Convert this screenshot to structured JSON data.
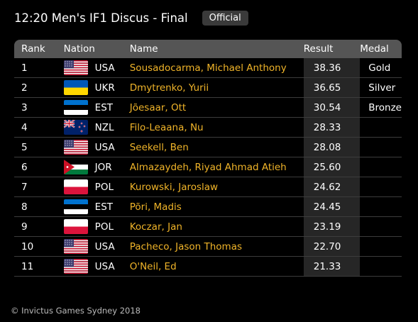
{
  "header": {
    "title": "12:20 Men's IF1 Discus - Final",
    "badge": "Official"
  },
  "table": {
    "columns": {
      "rank": "Rank",
      "nation": "Nation",
      "name": "Name",
      "result": "Result",
      "medal": "Medal"
    },
    "rows": [
      {
        "rank": "1",
        "flag": "usa",
        "code": "USA",
        "name": "Sousadocarma, Michael Anthony",
        "result": "38.36",
        "medal": "Gold"
      },
      {
        "rank": "2",
        "flag": "ukr",
        "code": "UKR",
        "name": "Dmytrenko, Yurii",
        "result": "36.65",
        "medal": "Silver"
      },
      {
        "rank": "3",
        "flag": "est",
        "code": "EST",
        "name": "Jõesaar, Ott",
        "result": "30.54",
        "medal": "Bronze"
      },
      {
        "rank": "4",
        "flag": "nzl",
        "code": "NZL",
        "name": "Filo-Leaana, Nu",
        "result": "28.33",
        "medal": ""
      },
      {
        "rank": "5",
        "flag": "usa",
        "code": "USA",
        "name": "Seekell, Ben",
        "result": "28.08",
        "medal": ""
      },
      {
        "rank": "6",
        "flag": "jor",
        "code": "JOR",
        "name": "Almazaydeh, Riyad Ahmad Atieh",
        "result": "25.60",
        "medal": ""
      },
      {
        "rank": "7",
        "flag": "pol",
        "code": "POL",
        "name": "Kurowski, Jaroslaw",
        "result": "24.62",
        "medal": ""
      },
      {
        "rank": "8",
        "flag": "est",
        "code": "EST",
        "name": "Põri, Madis",
        "result": "24.45",
        "medal": ""
      },
      {
        "rank": "9",
        "flag": "pol",
        "code": "POL",
        "name": "Koczar, Jan",
        "result": "23.19",
        "medal": ""
      },
      {
        "rank": "10",
        "flag": "usa",
        "code": "USA",
        "name": "Pacheco, Jason Thomas",
        "result": "22.70",
        "medal": ""
      },
      {
        "rank": "11",
        "flag": "usa",
        "code": "USA",
        "name": "O'Neil, Ed",
        "result": "21.33",
        "medal": ""
      }
    ]
  },
  "footer": {
    "copyright": "© Invictus Games Sydney 2018"
  },
  "colors": {
    "background": "#000000",
    "name_text": "#f0b429",
    "header_row": "#555555",
    "result_column": "#262626",
    "badge": "#3a3a3a"
  }
}
